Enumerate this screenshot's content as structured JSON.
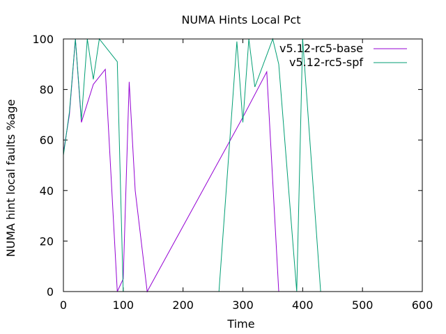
{
  "chart_data": {
    "type": "line",
    "title": "NUMA Hints Local Pct",
    "xlabel": "Time",
    "ylabel": "NUMA hint local faults %age",
    "xlim": [
      0,
      600
    ],
    "ylim": [
      0,
      100
    ],
    "xticks": [
      0,
      100,
      200,
      300,
      400,
      500,
      600
    ],
    "yticks": [
      0,
      20,
      40,
      60,
      80,
      100
    ],
    "grid": false,
    "legend_position": "top-right",
    "series": [
      {
        "name": "v5.12-rc5-base",
        "color": "#9400d3",
        "points": [
          [
            0,
            55
          ],
          [
            10,
            70
          ],
          [
            20,
            100
          ],
          [
            30,
            67
          ],
          [
            50,
            82
          ],
          [
            70,
            88
          ],
          [
            90,
            0
          ],
          [
            100,
            5
          ],
          [
            110,
            83
          ],
          [
            120,
            40
          ],
          [
            140,
            0
          ],
          [
            300,
            69
          ],
          [
            340,
            87
          ],
          [
            360,
            0
          ]
        ]
      },
      {
        "name": "v5.12-rc5-spf",
        "color": "#009e73",
        "points": [
          [
            0,
            54
          ],
          [
            10,
            71
          ],
          [
            20,
            100
          ],
          [
            30,
            68
          ],
          [
            40,
            100
          ],
          [
            50,
            84
          ],
          [
            60,
            100
          ],
          [
            90,
            91
          ],
          [
            100,
            0
          ],
          [
            260,
            0
          ],
          [
            290,
            99
          ],
          [
            300,
            67
          ],
          [
            310,
            100
          ],
          [
            320,
            81
          ],
          [
            350,
            100
          ],
          [
            360,
            90
          ],
          [
            390,
            0
          ],
          [
            400,
            100
          ],
          [
            430,
            0
          ]
        ]
      }
    ]
  }
}
